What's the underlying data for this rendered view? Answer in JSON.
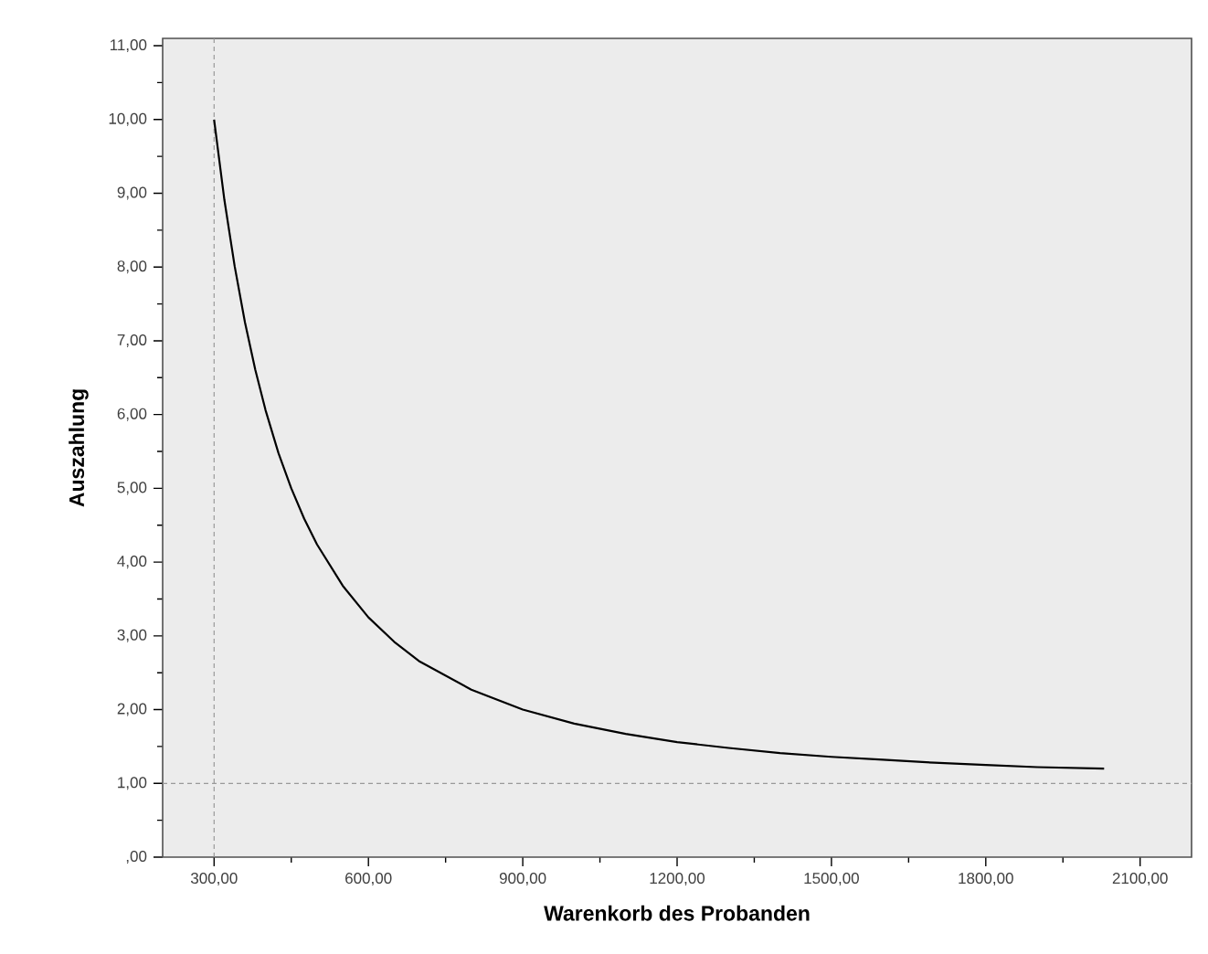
{
  "chart_data": {
    "type": "line",
    "xlabel": "Warenkorb des Probanden",
    "ylabel": "Auszahlung",
    "x": [
      300,
      320,
      340,
      360,
      380,
      400,
      425,
      450,
      475,
      500,
      550,
      600,
      650,
      700,
      800,
      900,
      1000,
      1100,
      1200,
      1300,
      1400,
      1500,
      1600,
      1700,
      1800,
      1900,
      2030
    ],
    "series": [
      {
        "color": "#000000",
        "values": [
          10.0,
          8.91,
          8.01,
          7.25,
          6.61,
          6.06,
          5.48,
          5.0,
          4.59,
          4.24,
          3.68,
          3.25,
          2.92,
          2.65,
          2.27,
          2.0,
          1.81,
          1.67,
          1.56,
          1.48,
          1.41,
          1.36,
          1.32,
          1.28,
          1.25,
          1.22,
          1.2
        ]
      }
    ],
    "xlim": [
      200,
      2200
    ],
    "ylim": [
      0,
      11.1
    ],
    "xticks": [
      {
        "value": 300,
        "label": "300,00"
      },
      {
        "value": 450,
        "label": null
      },
      {
        "value": 600,
        "label": "600,00"
      },
      {
        "value": 750,
        "label": null
      },
      {
        "value": 900,
        "label": "900,00"
      },
      {
        "value": 1050,
        "label": null
      },
      {
        "value": 1200,
        "label": "1200,00"
      },
      {
        "value": 1350,
        "label": null
      },
      {
        "value": 1500,
        "label": "1500,00"
      },
      {
        "value": 1650,
        "label": null
      },
      {
        "value": 1800,
        "label": "1800,00"
      },
      {
        "value": 1950,
        "label": null
      },
      {
        "value": 2100,
        "label": "2100,00"
      }
    ],
    "yticks": [
      {
        "value": 0,
        "label": ",00"
      },
      {
        "value": 0.5,
        "label": null
      },
      {
        "value": 1,
        "label": "1,00"
      },
      {
        "value": 1.5,
        "label": null
      },
      {
        "value": 2,
        "label": "2,00"
      },
      {
        "value": 2.5,
        "label": null
      },
      {
        "value": 3,
        "label": "3,00"
      },
      {
        "value": 3.5,
        "label": null
      },
      {
        "value": 4,
        "label": "4,00"
      },
      {
        "value": 4.5,
        "label": null
      },
      {
        "value": 5,
        "label": "5,00"
      },
      {
        "value": 5.5,
        "label": null
      },
      {
        "value": 6,
        "label": "6,00"
      },
      {
        "value": 6.5,
        "label": null
      },
      {
        "value": 7,
        "label": "7,00"
      },
      {
        "value": 7.5,
        "label": null
      },
      {
        "value": 8,
        "label": "8,00"
      },
      {
        "value": 8.5,
        "label": null
      },
      {
        "value": 9,
        "label": "9,00"
      },
      {
        "value": 9.5,
        "label": null
      },
      {
        "value": 10,
        "label": "10,00"
      },
      {
        "value": 10.5,
        "label": null
      },
      {
        "value": 11,
        "label": "11,00"
      }
    ],
    "ref_lines": [
      {
        "axis": "x",
        "value": 300,
        "color": "#999999",
        "line_style": "dashed"
      },
      {
        "axis": "y",
        "value": 1,
        "color": "#999999",
        "line_style": "dashed"
      }
    ],
    "marker": "none",
    "line_style": "solid"
  }
}
